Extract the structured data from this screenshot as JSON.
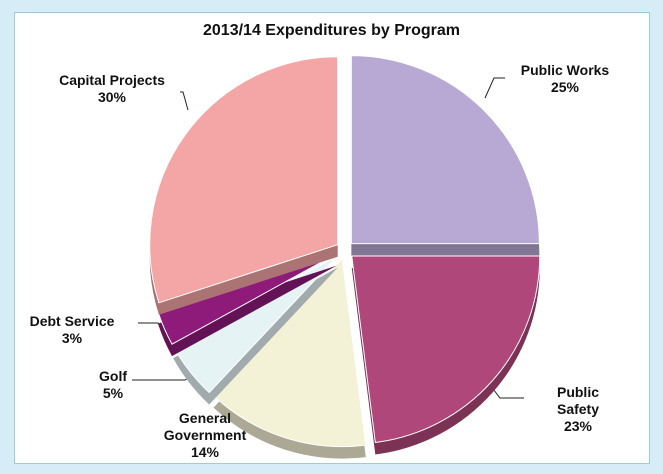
{
  "chart_data": {
    "type": "pie",
    "title": "2013/14 Expenditures by Program",
    "categories": [
      "Public Works",
      "Public Safety",
      "General Government",
      "Golf",
      "Debt Service",
      "Capital Projects"
    ],
    "values": [
      25,
      23,
      14,
      5,
      3,
      30
    ],
    "value_labels": [
      "25%",
      "23%",
      "14%",
      "5%",
      "3%",
      "30%"
    ],
    "colors": [
      "#b8a9d4",
      "#b0477a",
      "#f4f2d6",
      "#e6f3f5",
      "#8e1a7a",
      "#f4a5a5"
    ]
  }
}
